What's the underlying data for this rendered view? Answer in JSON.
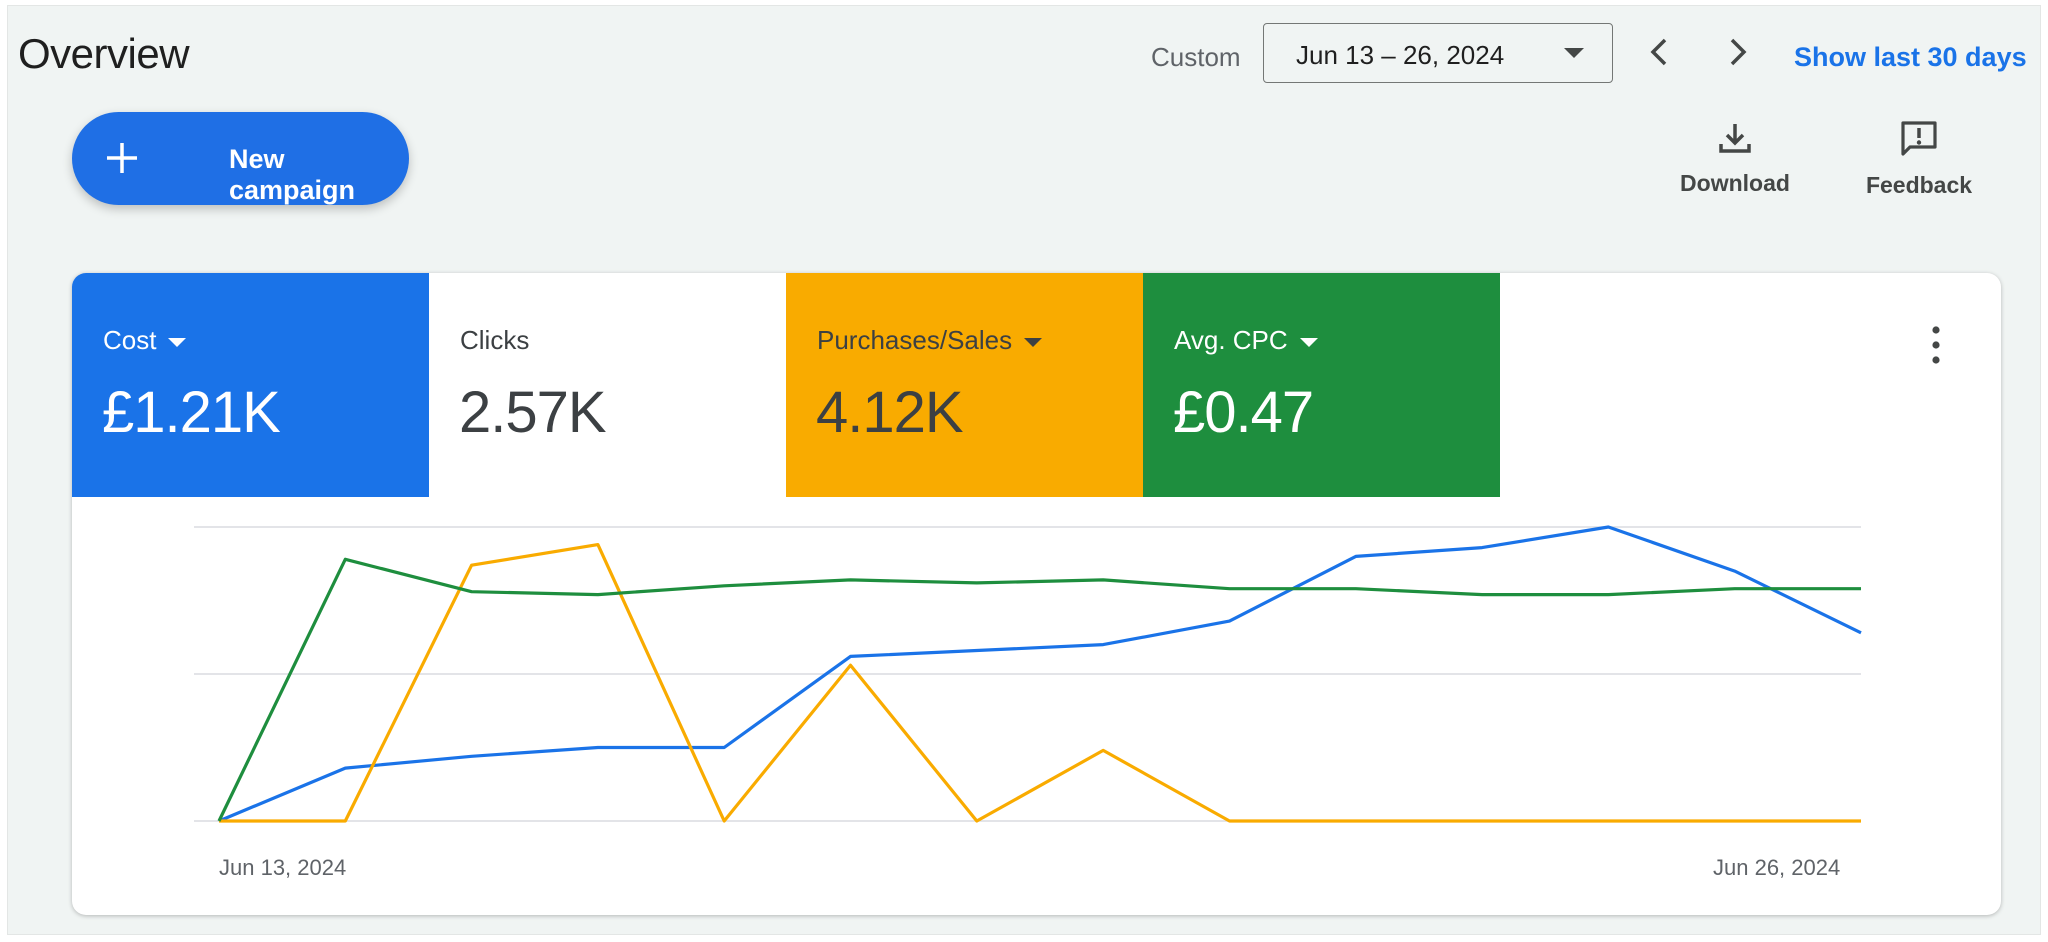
{
  "header": {
    "title": "Overview",
    "custom_label": "Custom",
    "date_range": "Jun 13 – 26, 2024",
    "prev_icon": "chevron-left-icon",
    "next_icon": "chevron-right-icon",
    "show_last": "Show last 30 days"
  },
  "toolbar": {
    "new_campaign_label": "New campaign",
    "new_campaign_icon": "plus-icon",
    "download_label": "Download",
    "download_icon": "download-icon",
    "feedback_label": "Feedback",
    "feedback_icon": "feedback-icon"
  },
  "metrics": [
    {
      "label": "Cost",
      "value": "£1.21K",
      "has_dropdown": true,
      "bg": "#1a73e8",
      "fg": "#ffffff"
    },
    {
      "label": "Clicks",
      "value": "2.57K",
      "has_dropdown": false,
      "bg": "#ffffff",
      "fg": "#3c4043"
    },
    {
      "label": "Purchases/Sales",
      "value": "4.12K",
      "has_dropdown": true,
      "bg": "#f9ab00",
      "fg": "#3c4043"
    },
    {
      "label": "Avg. CPC",
      "value": "£0.47",
      "has_dropdown": true,
      "bg": "#1e8e3e",
      "fg": "#ffffff"
    }
  ],
  "chart_data": {
    "type": "line",
    "x": [
      "Jun 13, 2024",
      "",
      "",
      "",
      "",
      "",
      "",
      "",
      "",
      "",
      "",
      "",
      "",
      "Jun 26, 2024"
    ],
    "x_start_label": "Jun 13, 2024",
    "x_end_label": "Jun 26, 2024",
    "ylim": [
      0,
      100
    ],
    "grid": true,
    "series": [
      {
        "metric": "Cost",
        "color": "#1a73e8",
        "values": [
          0,
          18,
          22,
          25,
          25,
          56,
          58,
          60,
          68,
          90,
          93,
          100,
          85,
          64
        ]
      },
      {
        "metric": "Purchases/Sales",
        "color": "#f9ab00",
        "values": [
          0,
          0,
          87,
          94,
          0,
          53,
          0,
          24,
          0,
          0,
          0,
          0,
          0,
          0
        ]
      },
      {
        "metric": "Avg. CPC",
        "color": "#1e8e3e",
        "values": [
          0,
          89,
          78,
          77,
          80,
          82,
          81,
          82,
          79,
          79,
          77,
          77,
          79,
          79
        ]
      }
    ]
  }
}
